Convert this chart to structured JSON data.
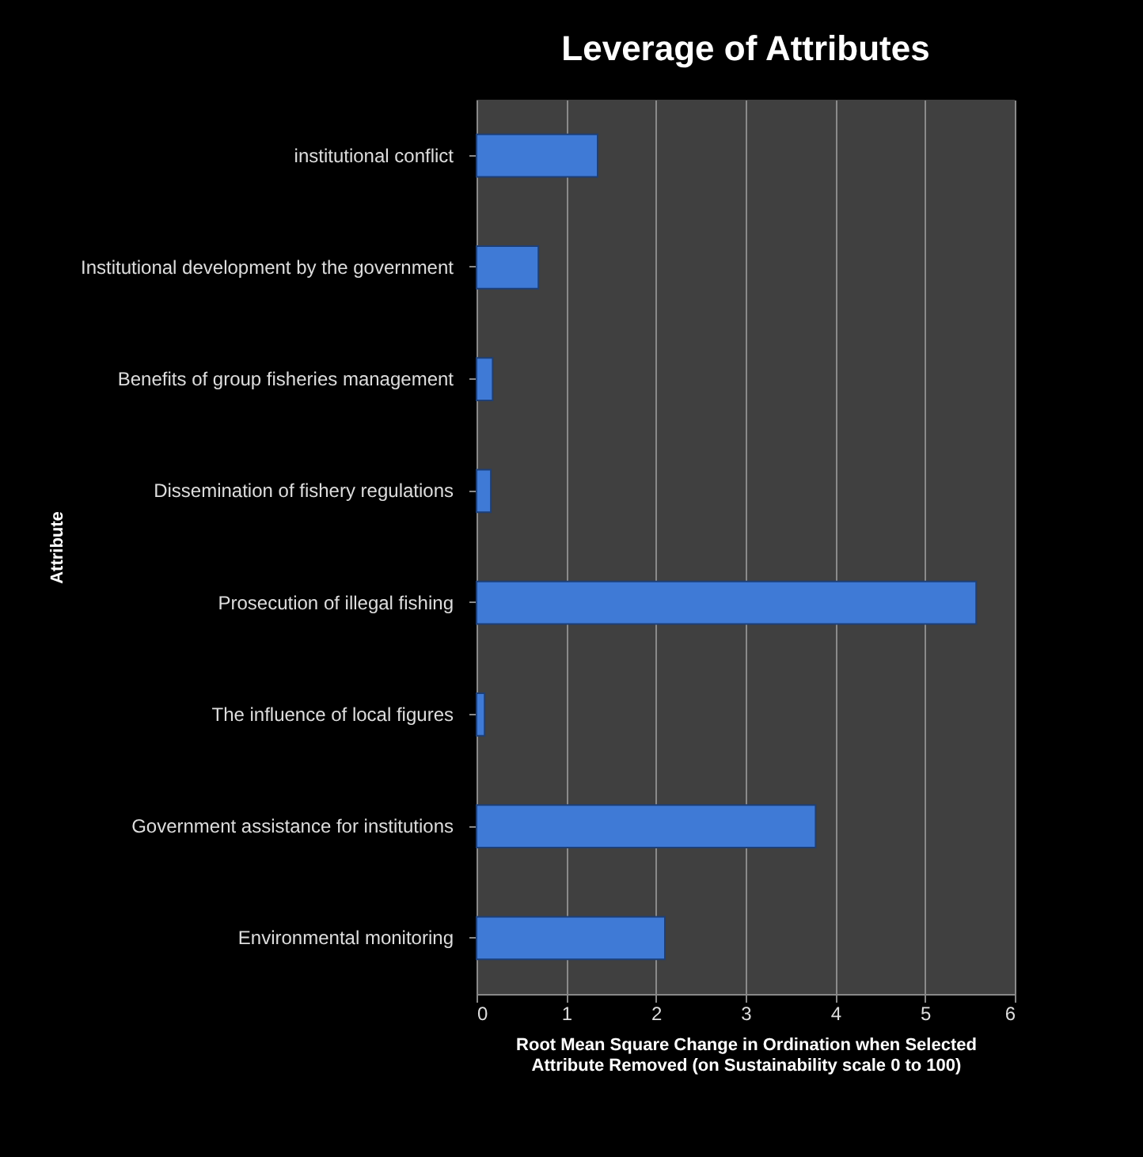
{
  "chart_data": {
    "type": "bar",
    "orientation": "horizontal",
    "title": "Leverage of Attributes",
    "xlabel": "Root Mean Square Change in Ordination when Selected Attribute Removed (on Sustainability scale 0 to 100)",
    "ylabel": "Attribute",
    "categories": [
      "institutional conflict",
      "Institutional development by the government",
      "Benefits of group fisheries management",
      "Dissemination of fishery regulations",
      "Prosecution of illegal fishing",
      "The influence of local figures",
      "Government assistance for institutions",
      "Environmental monitoring"
    ],
    "values": [
      1.35,
      0.69,
      0.18,
      0.16,
      5.57,
      0.09,
      3.78,
      2.1
    ],
    "color": "#3f7ad6",
    "xlim": [
      0,
      6
    ],
    "xticks": [
      0,
      1,
      2,
      3,
      4,
      5,
      6
    ],
    "grid": "x"
  }
}
